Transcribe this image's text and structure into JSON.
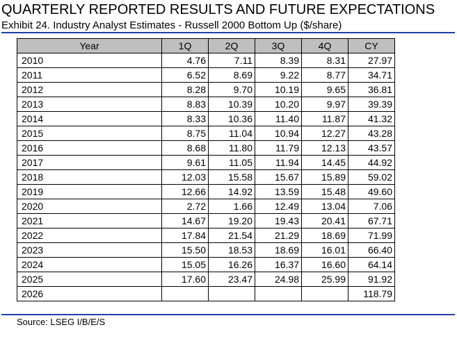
{
  "title": "QUARTERLY REPORTED RESULTS AND FUTURE EXPECTATIONS",
  "subtitle": "Exhibit 24. Industry Analyst Estimates - Russell 2000 Bottom Up ($/share)",
  "table": {
    "headers": [
      "Year",
      "1Q",
      "2Q",
      "3Q",
      "4Q",
      "CY"
    ],
    "rows": [
      [
        "2010",
        "4.76",
        "7.11",
        "8.39",
        "8.31",
        "27.97"
      ],
      [
        "2011",
        "6.52",
        "8.69",
        "9.22",
        "8.77",
        "34.71"
      ],
      [
        "2012",
        "8.28",
        "9.70",
        "10.19",
        "9.65",
        "36.81"
      ],
      [
        "2013",
        "8.83",
        "10.39",
        "10.20",
        "9.97",
        "39.39"
      ],
      [
        "2014",
        "8.33",
        "10.36",
        "11.40",
        "11.87",
        "41.32"
      ],
      [
        "2015",
        "8.75",
        "11.04",
        "10.94",
        "12.27",
        "43.28"
      ],
      [
        "2016",
        "8.68",
        "11.80",
        "11.79",
        "12.13",
        "43.57"
      ],
      [
        "2017",
        "9.61",
        "11.05",
        "11.94",
        "14.45",
        "44.92"
      ],
      [
        "2018",
        "12.03",
        "15.58",
        "15.67",
        "15.89",
        "59.02"
      ],
      [
        "2019",
        "12.66",
        "14.92",
        "13.59",
        "15.48",
        "49.60"
      ],
      [
        "2020",
        "2.72",
        "1.66",
        "12.49",
        "13.04",
        "7.06"
      ],
      [
        "2021",
        "14.67",
        "19.20",
        "19.43",
        "20.41",
        "67.71"
      ],
      [
        "2022",
        "17.84",
        "21.54",
        "21.29",
        "18.69",
        "71.99"
      ],
      [
        "2023",
        "15.50",
        "18.53",
        "18.69",
        "16.01",
        "66.40"
      ],
      [
        "2024",
        "15.05",
        "16.26",
        "16.37",
        "16.60",
        "64.14"
      ],
      [
        "2025",
        "17.60",
        "23.47",
        "24.98",
        "25.99",
        "91.92"
      ],
      [
        "2026",
        "",
        "",
        "",
        "",
        "118.79"
      ]
    ]
  },
  "source": "Source: LSEG I/B/E/S",
  "colors": {
    "rule": "#1f3fa8",
    "header_bg": "#bfbfbf"
  }
}
